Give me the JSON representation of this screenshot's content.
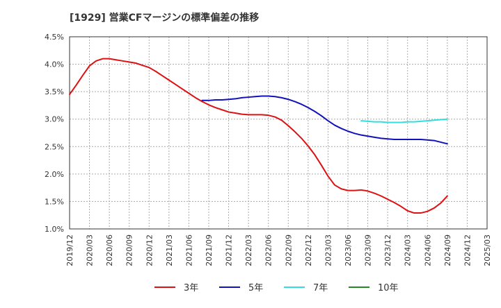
{
  "chart_data": {
    "type": "line",
    "title": "[1929]  営業CFマージンの標準偏差の推移",
    "xlabel": "",
    "ylabel": "",
    "ylim": [
      1.0,
      4.5
    ],
    "yticks": [
      "1.0%",
      "1.5%",
      "2.0%",
      "2.5%",
      "3.0%",
      "3.5%",
      "4.0%",
      "4.5%"
    ],
    "xticks": [
      "2019/12",
      "2020/03",
      "2020/06",
      "2020/09",
      "2020/12",
      "2021/03",
      "2021/06",
      "2021/09",
      "2021/12",
      "2022/03",
      "2022/06",
      "2022/09",
      "2022/12",
      "2023/03",
      "2023/06",
      "2023/09",
      "2023/12",
      "2024/03",
      "2024/06",
      "2024/09",
      "2024/12",
      "2025/03"
    ],
    "grid": true,
    "legend_position": "bottom",
    "series": [
      {
        "name": "3年",
        "color": "#dd1111",
        "points": [
          [
            "2019/12",
            3.45
          ],
          [
            "2020/01",
            3.62
          ],
          [
            "2020/02",
            3.8
          ],
          [
            "2020/03",
            3.97
          ],
          [
            "2020/04",
            4.06
          ],
          [
            "2020/05",
            4.1
          ],
          [
            "2020/06",
            4.1
          ],
          [
            "2020/07",
            4.08
          ],
          [
            "2020/08",
            4.06
          ],
          [
            "2020/09",
            4.04
          ],
          [
            "2020/10",
            4.02
          ],
          [
            "2020/11",
            3.98
          ],
          [
            "2020/12",
            3.94
          ],
          [
            "2021/01",
            3.87
          ],
          [
            "2021/02",
            3.79
          ],
          [
            "2021/03",
            3.71
          ],
          [
            "2021/04",
            3.63
          ],
          [
            "2021/05",
            3.55
          ],
          [
            "2021/06",
            3.47
          ],
          [
            "2021/07",
            3.39
          ],
          [
            "2021/08",
            3.32
          ],
          [
            "2021/09",
            3.26
          ],
          [
            "2021/10",
            3.21
          ],
          [
            "2021/11",
            3.17
          ],
          [
            "2021/12",
            3.13
          ],
          [
            "2022/01",
            3.11
          ],
          [
            "2022/02",
            3.09
          ],
          [
            "2022/03",
            3.08
          ],
          [
            "2022/04",
            3.08
          ],
          [
            "2022/05",
            3.08
          ],
          [
            "2022/06",
            3.07
          ],
          [
            "2022/07",
            3.04
          ],
          [
            "2022/08",
            2.98
          ],
          [
            "2022/09",
            2.88
          ],
          [
            "2022/10",
            2.77
          ],
          [
            "2022/11",
            2.65
          ],
          [
            "2022/12",
            2.51
          ],
          [
            "2023/01",
            2.35
          ],
          [
            "2023/02",
            2.16
          ],
          [
            "2023/03",
            1.96
          ],
          [
            "2023/04",
            1.8
          ],
          [
            "2023/05",
            1.73
          ],
          [
            "2023/06",
            1.7
          ],
          [
            "2023/07",
            1.7
          ],
          [
            "2023/08",
            1.71
          ],
          [
            "2023/09",
            1.69
          ],
          [
            "2023/10",
            1.65
          ],
          [
            "2023/11",
            1.6
          ],
          [
            "2023/12",
            1.54
          ],
          [
            "2024/01",
            1.48
          ],
          [
            "2024/02",
            1.41
          ],
          [
            "2024/03",
            1.33
          ],
          [
            "2024/04",
            1.29
          ],
          [
            "2024/05",
            1.29
          ],
          [
            "2024/06",
            1.32
          ],
          [
            "2024/07",
            1.38
          ],
          [
            "2024/08",
            1.47
          ],
          [
            "2024/09",
            1.6
          ]
        ]
      },
      {
        "name": "5年",
        "color": "#1111bb",
        "points": [
          [
            "2021/08",
            3.34
          ],
          [
            "2021/09",
            3.34
          ],
          [
            "2021/10",
            3.35
          ],
          [
            "2021/11",
            3.35
          ],
          [
            "2021/12",
            3.36
          ],
          [
            "2022/01",
            3.37
          ],
          [
            "2022/02",
            3.39
          ],
          [
            "2022/03",
            3.4
          ],
          [
            "2022/04",
            3.41
          ],
          [
            "2022/05",
            3.42
          ],
          [
            "2022/06",
            3.42
          ],
          [
            "2022/07",
            3.41
          ],
          [
            "2022/08",
            3.39
          ],
          [
            "2022/09",
            3.36
          ],
          [
            "2022/10",
            3.32
          ],
          [
            "2022/11",
            3.27
          ],
          [
            "2022/12",
            3.21
          ],
          [
            "2023/01",
            3.14
          ],
          [
            "2023/02",
            3.06
          ],
          [
            "2023/03",
            2.97
          ],
          [
            "2023/04",
            2.89
          ],
          [
            "2023/05",
            2.83
          ],
          [
            "2023/06",
            2.78
          ],
          [
            "2023/07",
            2.74
          ],
          [
            "2023/08",
            2.71
          ],
          [
            "2023/09",
            2.69
          ],
          [
            "2023/10",
            2.67
          ],
          [
            "2023/11",
            2.65
          ],
          [
            "2023/12",
            2.64
          ],
          [
            "2024/01",
            2.63
          ],
          [
            "2024/02",
            2.63
          ],
          [
            "2024/03",
            2.63
          ],
          [
            "2024/04",
            2.63
          ],
          [
            "2024/05",
            2.63
          ],
          [
            "2024/06",
            2.62
          ],
          [
            "2024/07",
            2.61
          ],
          [
            "2024/08",
            2.58
          ],
          [
            "2024/09",
            2.55
          ]
        ]
      },
      {
        "name": "7年",
        "color": "#33dddd",
        "points": [
          [
            "2023/08",
            2.97
          ],
          [
            "2023/09",
            2.96
          ],
          [
            "2023/10",
            2.95
          ],
          [
            "2023/11",
            2.95
          ],
          [
            "2023/12",
            2.94
          ],
          [
            "2024/01",
            2.94
          ],
          [
            "2024/02",
            2.94
          ],
          [
            "2024/03",
            2.95
          ],
          [
            "2024/04",
            2.95
          ],
          [
            "2024/05",
            2.96
          ],
          [
            "2024/06",
            2.97
          ],
          [
            "2024/07",
            2.98
          ],
          [
            "2024/08",
            2.99
          ],
          [
            "2024/09",
            3.0
          ]
        ]
      },
      {
        "name": "10年",
        "color": "#228822",
        "points": []
      }
    ]
  }
}
